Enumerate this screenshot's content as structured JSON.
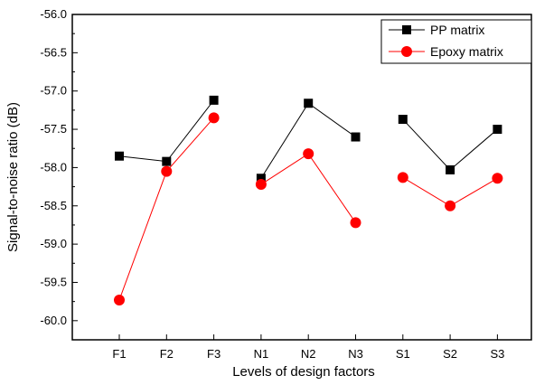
{
  "chart_data": {
    "type": "line",
    "xlabel": "Levels of design factors",
    "ylabel": "Signal-to-noise ratio (dB)",
    "categories": [
      "F1",
      "F2",
      "F3",
      "N1",
      "N2",
      "N3",
      "S1",
      "S2",
      "S3"
    ],
    "groups": [
      [
        0,
        1,
        2
      ],
      [
        3,
        4,
        5
      ],
      [
        6,
        7,
        8
      ]
    ],
    "ylim": [
      -60.25,
      -56.0
    ],
    "yticks": [
      "-56.0",
      "-56.5",
      "-57.0",
      "-57.5",
      "-58.0",
      "-58.5",
      "-59.0",
      "-59.5",
      "-60.0"
    ],
    "ytick_values": [
      -56.0,
      -56.5,
      -57.0,
      -57.5,
      -58.0,
      -58.5,
      -59.0,
      -59.5,
      -60.0
    ],
    "legend_position": "top-right",
    "grid": false,
    "series": [
      {
        "name": "PP matrix",
        "marker": "square",
        "marker_color": "#000000",
        "line_color": "#000000",
        "values": [
          -57.85,
          -57.92,
          -57.12,
          -58.14,
          -57.16,
          -57.6,
          -57.37,
          -58.03,
          -57.5
        ]
      },
      {
        "name": "Epoxy matrix",
        "marker": "circle",
        "marker_color": "#ff0000",
        "line_color": "#ff0000",
        "values": [
          -59.73,
          -58.05,
          -57.35,
          -58.22,
          -57.82,
          -58.72,
          -58.13,
          -58.5,
          -58.14
        ]
      }
    ]
  }
}
